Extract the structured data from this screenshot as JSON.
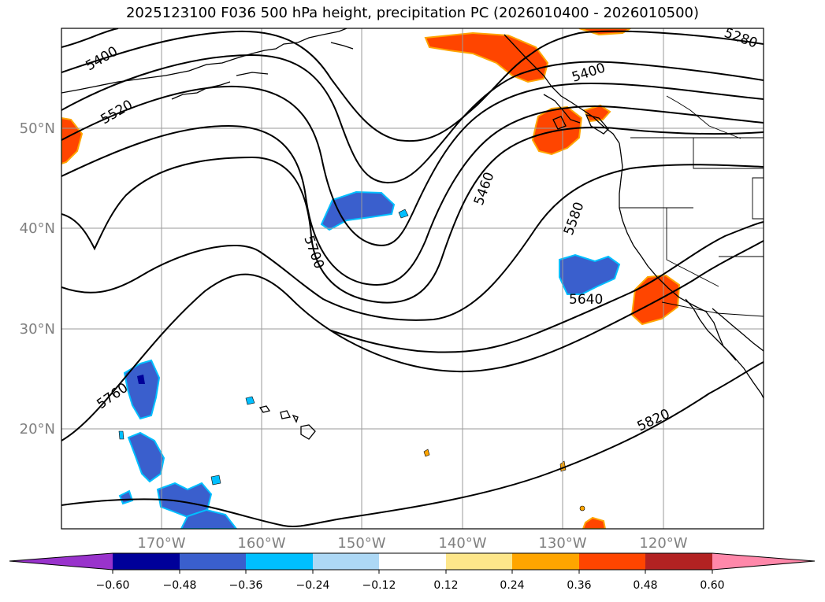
{
  "title": "2025123100 F036 500 hPa height, precipitation PC (2026010400 - 2026010500)",
  "colors": {
    "land_outline": "#000000",
    "gridline": "#9a9a9a",
    "axis_label": "#7f7f7f",
    "contour": "#000000"
  },
  "lat_labels": [
    "50°N",
    "40°N",
    "30°N",
    "20°N"
  ],
  "lon_labels": [
    "170°W",
    "160°W",
    "150°W",
    "140°W",
    "130°W",
    "120°W"
  ],
  "contour_labels": [
    "5400",
    "5520",
    "5400",
    "5280",
    "5460",
    "5580",
    "5700",
    "5640",
    "5760",
    "5820"
  ],
  "colorbar": {
    "ticks": [
      "−0.60",
      "−0.48",
      "−0.36",
      "−0.24",
      "−0.12",
      "0.12",
      "0.24",
      "0.36",
      "0.48",
      "0.60"
    ],
    "colors": [
      "#9933cc",
      "#000099",
      "#3a5fcd",
      "#00bfff",
      "#add8f5",
      "#ffffff",
      "#fde68a",
      "#ffa500",
      "#ff4500",
      "#b22222",
      "#ff88aa"
    ]
  },
  "precip_areas": [
    {
      "region": "Gulf of Alaska / Haida Gwaii",
      "sign": "positive",
      "level": "0.36"
    },
    {
      "region": "Vancouver Island",
      "sign": "positive",
      "level": "0.36"
    },
    {
      "region": "Southern California coast",
      "sign": "positive",
      "level": "0.36"
    },
    {
      "region": "western edge near 48°N",
      "sign": "positive",
      "level": "0.36"
    },
    {
      "region": "North Pacific near 150°W 42°N",
      "sign": "negative",
      "level": "−0.36"
    },
    {
      "region": "Offshore near 128°W 35°N",
      "sign": "negative",
      "level": "−0.36"
    },
    {
      "region": "South of 25°N near 170°W",
      "sign": "negative",
      "level": "−0.36"
    }
  ]
}
